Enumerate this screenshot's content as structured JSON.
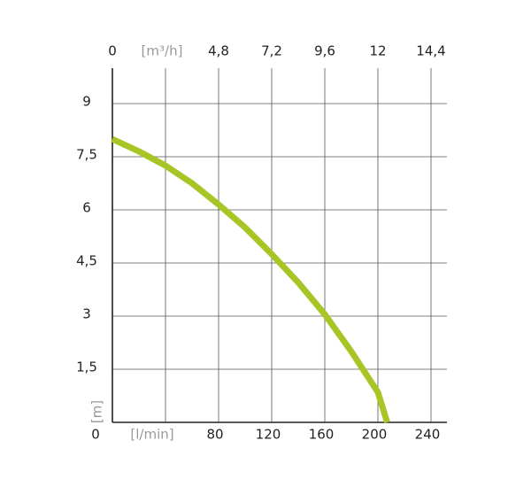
{
  "chart_data": {
    "type": "line",
    "x_unit": "[l/min]",
    "x2_unit": "[m³/h]",
    "y_unit": "[m]",
    "xlim": [
      0,
      252
    ],
    "xticks": [
      80,
      120,
      160,
      200,
      240
    ],
    "xgrid": [
      40,
      80,
      120,
      160,
      200,
      240
    ],
    "x2lim": [
      0,
      15.12
    ],
    "x2ticks": [
      0,
      {
        "value": 4.8,
        "label": "4,8"
      },
      {
        "value": 7.2,
        "label": "7,2"
      },
      {
        "value": 9.6,
        "label": "9,6"
      },
      12,
      {
        "value": 14.4,
        "label": "14,4"
      }
    ],
    "ylim": [
      0,
      10
    ],
    "yticks": [
      0,
      {
        "value": 1.5,
        "label": "1,5"
      },
      3,
      {
        "value": 4.5,
        "label": "4,5"
      },
      6,
      {
        "value": 7.5,
        "label": "7,5"
      },
      9
    ],
    "grid": true,
    "x": [
      0,
      20,
      40,
      60,
      80,
      100,
      120,
      140,
      160,
      180,
      200,
      207
    ],
    "series": [
      {
        "color": "#a8c526",
        "values": [
          8.0,
          7.65,
          7.25,
          6.75,
          6.15,
          5.5,
          4.75,
          3.95,
          3.05,
          2.0,
          0.85,
          0
        ]
      }
    ]
  }
}
